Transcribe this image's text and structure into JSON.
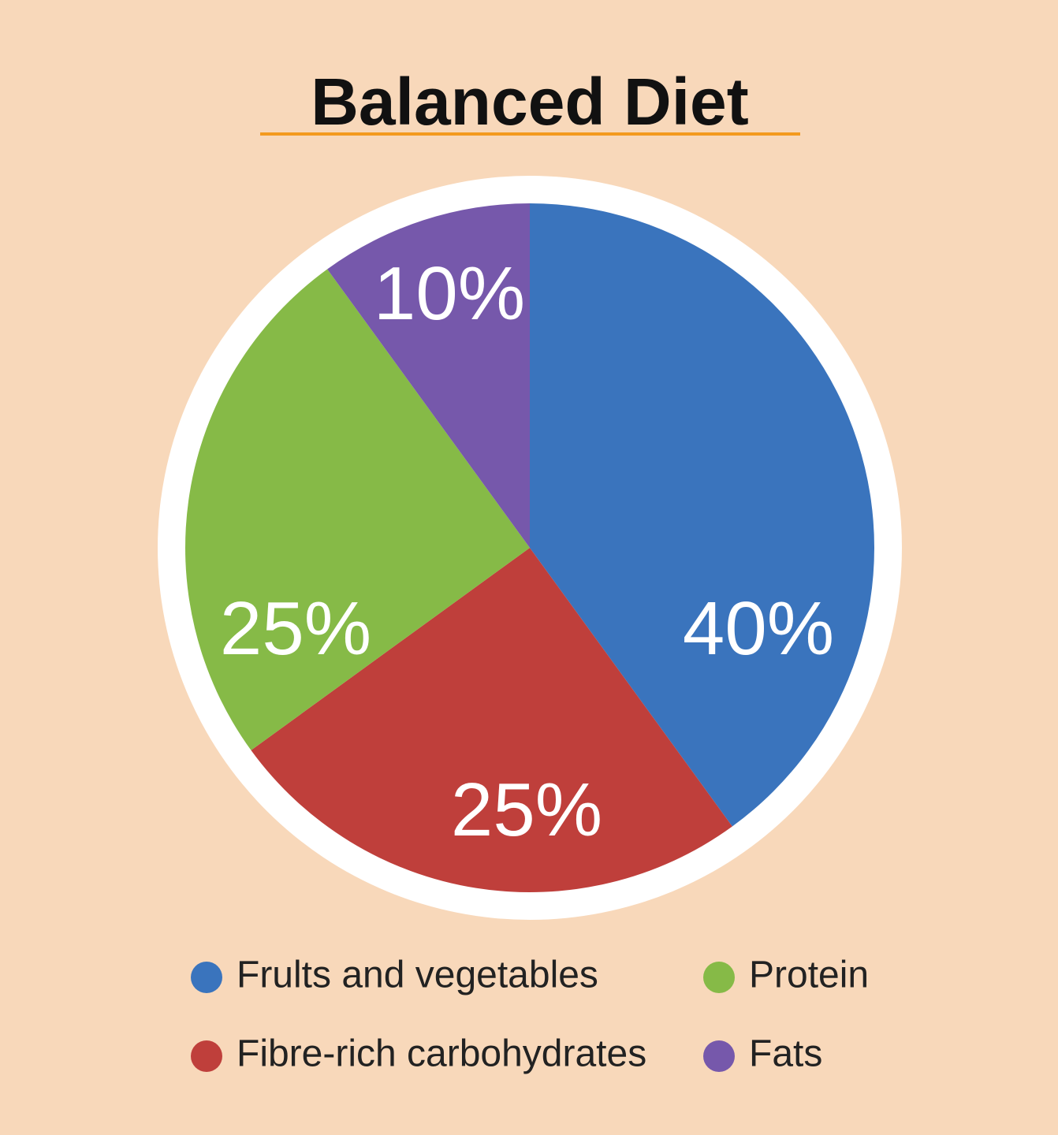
{
  "chart_data": {
    "type": "pie",
    "title": "Balanced Diet",
    "categories": [
      "Frults and vegetables",
      "Fibre-rich carbohydrates",
      "Protein",
      "Fats"
    ],
    "values": [
      40,
      25,
      25,
      10
    ],
    "value_labels": [
      "40%",
      "25%",
      "25%",
      "10%"
    ],
    "colors": [
      "#3a74bd",
      "#bf3f3b",
      "#86ba47",
      "#7658ab"
    ]
  }
}
